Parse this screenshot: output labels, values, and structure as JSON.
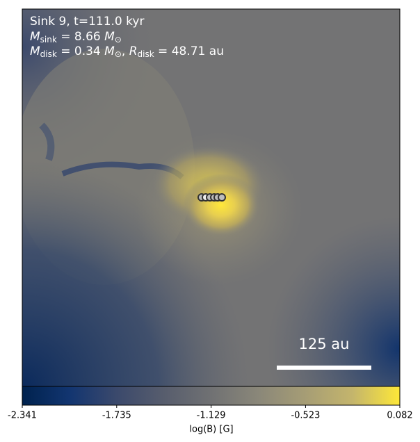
{
  "chart_data": {
    "type": "colormap_image",
    "annotations": [
      [
        {
          "text": "Sink 9, t=111.0 kyr"
        }
      ],
      [
        {
          "text": "M",
          "style": "italic"
        },
        {
          "text": "sink",
          "style": "sub"
        },
        {
          "text": " = 8.66 "
        },
        {
          "text": "M",
          "style": "italic"
        },
        {
          "text": "⊙",
          "style": "sub"
        }
      ],
      [
        {
          "text": "M",
          "style": "italic"
        },
        {
          "text": "disk",
          "style": "sub"
        },
        {
          "text": " = 0.34 "
        },
        {
          "text": "M",
          "style": "italic"
        },
        {
          "text": "⊙",
          "style": "sub"
        },
        {
          "text": ", "
        },
        {
          "text": "R",
          "style": "italic"
        },
        {
          "text": "disk",
          "style": "sub"
        },
        {
          "text": " = 48.71 au"
        }
      ]
    ],
    "scale_bar_label": "125 au",
    "colorbar_label": "log(B) [G]",
    "clim": [
      -2.341,
      0.082
    ],
    "cticks": [
      -2.341,
      -1.735,
      -1.129,
      -0.523,
      0.082
    ],
    "colors": [
      "#00224e",
      "#123570",
      "#3b496c",
      "#575d6d",
      "#707173",
      "#8a8779",
      "#a69d75",
      "#c4b56c",
      "#fee838"
    ]
  }
}
